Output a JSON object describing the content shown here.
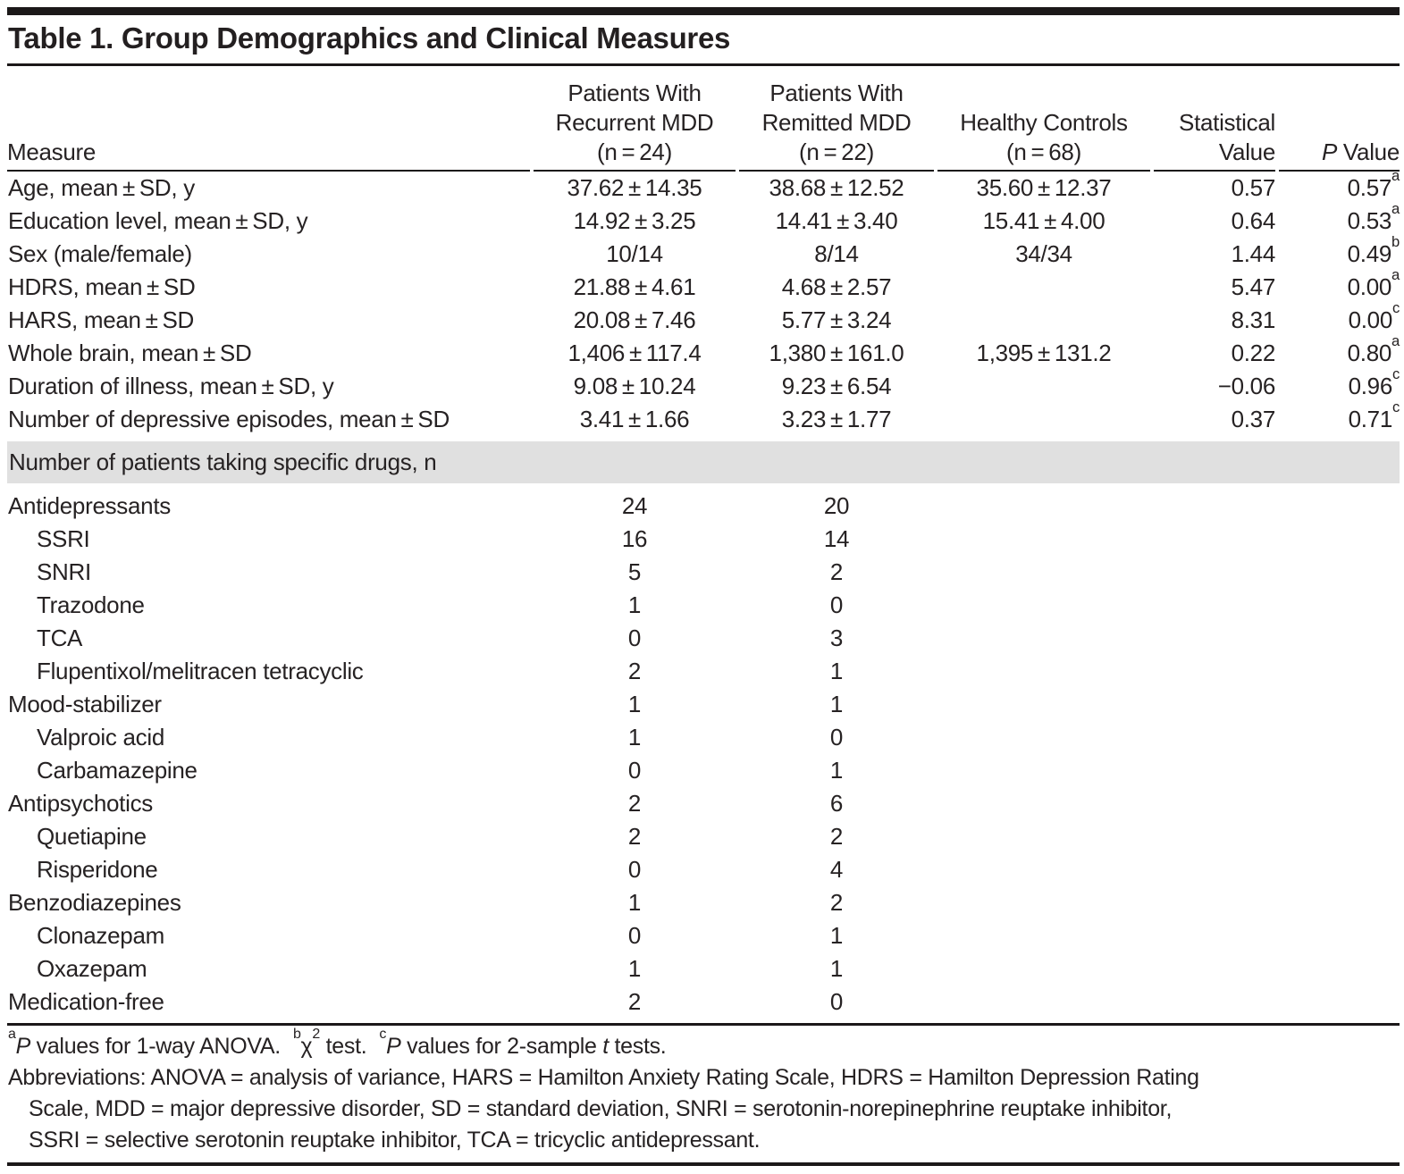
{
  "title": "Table 1. Group Demographics and Clinical Measures",
  "header": {
    "measure": "Measure",
    "recurrent": "Patients With\nRecurrent MDD\n(n = 24)",
    "remitted": "Patients With\nRemitted MDD\n(n = 22)",
    "healthy": "Healthy Controls\n(n = 68)",
    "statistical": "Statistical\nValue",
    "p_italic": "P",
    "p_rest": " Value"
  },
  "rows": [
    {
      "label": "Age, mean ± SD, y",
      "recurrent": "37.62 ± 14.35",
      "remitted": "38.68 ± 12.52",
      "healthy": "35.60 ± 12.37",
      "stat": "0.57",
      "p": "0.57",
      "p_note": "a"
    },
    {
      "label": "Education level, mean ± SD, y",
      "recurrent": "14.92 ± 3.25",
      "remitted": "14.41 ± 3.40",
      "healthy": "15.41 ± 4.00",
      "stat": "0.64",
      "p": "0.53",
      "p_note": "a"
    },
    {
      "label": "Sex (male/female)",
      "recurrent": "10/14",
      "remitted": "8/14",
      "healthy": "34/34",
      "stat": "1.44",
      "p": "0.49",
      "p_note": "b"
    },
    {
      "label": "HDRS, mean ± SD",
      "recurrent": "21.88 ± 4.61",
      "remitted": "4.68 ± 2.57",
      "stat": "5.47",
      "p": "0.00",
      "p_note": "a"
    },
    {
      "label": "HARS, mean ± SD",
      "recurrent": "20.08 ± 7.46",
      "remitted": "5.77 ± 3.24",
      "stat": "8.31",
      "p": "0.00",
      "p_note": "c"
    },
    {
      "label": "Whole brain, mean ± SD",
      "recurrent": "1,406 ± 117.4",
      "remitted": "1,380 ± 161.0",
      "healthy": "1,395 ± 131.2",
      "stat": "0.22",
      "p": "0.80",
      "p_note": "a"
    },
    {
      "label": "Duration of illness, mean ± SD, y",
      "recurrent": "9.08 ± 10.24",
      "remitted": "9.23 ± 6.54",
      "stat": "−0.06",
      "p": "0.96",
      "p_note": "c"
    },
    {
      "label": "Number of depressive episodes, mean ± SD",
      "recurrent": "3.41 ± 1.66",
      "remitted": "3.23 ± 1.77",
      "stat": "0.37",
      "p": "0.71",
      "p_note": "c"
    },
    {
      "label": "Antidepressants",
      "recurrent": "24",
      "remitted": "20"
    },
    {
      "label": "SSRI",
      "recurrent": "16",
      "remitted": "14"
    },
    {
      "label": "SNRI",
      "recurrent": "5",
      "remitted": "2"
    },
    {
      "label": "Trazodone",
      "recurrent": "1",
      "remitted": "0"
    },
    {
      "label": "TCA",
      "recurrent": "0",
      "remitted": "3"
    },
    {
      "label": "Flupentixol/melitracen tetracyclic",
      "recurrent": "2",
      "remitted": "1"
    },
    {
      "label": "Mood-stabilizer",
      "recurrent": "1",
      "remitted": "1"
    },
    {
      "label": "Valproic acid",
      "recurrent": "1",
      "remitted": "0"
    },
    {
      "label": "Carbamazepine",
      "recurrent": "0",
      "remitted": "1"
    },
    {
      "label": "Antipsychotics",
      "recurrent": "2",
      "remitted": "6"
    },
    {
      "label": "Quetiapine",
      "recurrent": "2",
      "remitted": "2"
    },
    {
      "label": "Risperidone",
      "recurrent": "0",
      "remitted": "4"
    },
    {
      "label": "Benzodiazepines",
      "recurrent": "1",
      "remitted": "2"
    },
    {
      "label": "Clonazepam",
      "recurrent": "0",
      "remitted": "1"
    },
    {
      "label": "Oxazepam",
      "recurrent": "1",
      "remitted": "1"
    },
    {
      "label": "Medication-free",
      "recurrent": "2",
      "remitted": "0"
    }
  ],
  "section_header": "Number of patients taking specific drugs, n",
  "footnotes": {
    "tests": {
      "a_sup": "a",
      "a_p": "P",
      "a_text": " values for 1-way ANOVA.",
      "b_sup": "b",
      "b_chi": "χ",
      "b_exp": "2",
      "b_text": " test.",
      "c_sup": "c",
      "c_p": "P",
      "c_text1": " values for 2-sample ",
      "c_t": "t",
      "c_text2": " tests."
    },
    "abbreviations": [
      "Abbreviations: ANOVA = analysis of variance, HARS = Hamilton Anxiety Rating Scale, HDRS = Hamilton Depression Rating",
      "Scale, MDD = major depressive disorder, SD = standard deviation, SNRI = serotonin-norepinephrine reuptake inhibitor,",
      "SSRI = selective serotonin reuptake inhibitor, TCA = tricyclic antidepressant."
    ]
  },
  "colors": {
    "section_band": "#e0e0e0",
    "rule": "#1b1819",
    "text": "#262223"
  }
}
